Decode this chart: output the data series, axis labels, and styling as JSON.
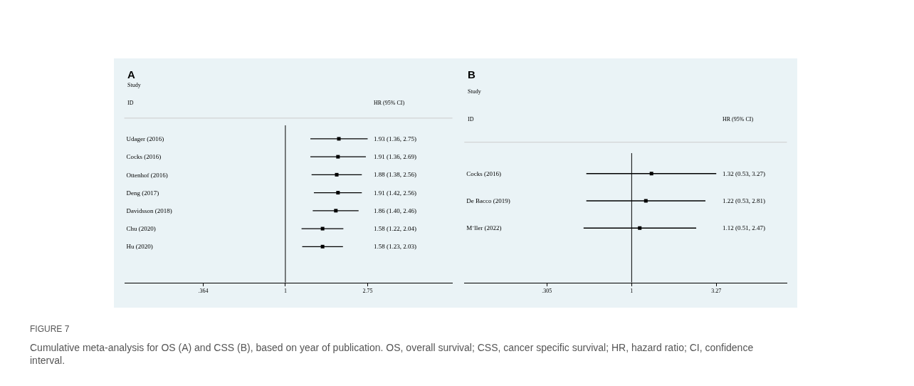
{
  "chart_data": [
    {
      "type": "scatter",
      "orientation": "horizontal",
      "title": "A",
      "color": "#000000",
      "marker": "square",
      "log": "x",
      "grid": false,
      "categories": [
        "Udager (2016)",
        "Cocks (2016)",
        "Ottenhof (2016)",
        "Deng (2017)",
        "Davidsson (2018)",
        "Chu (2020)",
        "Hu (2020)"
      ],
      "values": [
        1.93,
        1.91,
        1.88,
        1.91,
        1.86,
        1.58,
        1.58
      ],
      "errors": [
        [
          1.36,
          2.75
        ],
        [
          1.36,
          2.69
        ],
        [
          1.38,
          2.56
        ],
        [
          1.42,
          2.56
        ],
        [
          1.4,
          2.46
        ],
        [
          1.22,
          2.04
        ],
        [
          1.23,
          2.03
        ]
      ],
      "xlim": [
        0.138,
        7.8
      ],
      "xticks": [
        {
          "value": 0.364,
          "label": ".364"
        },
        1,
        2.75
      ],
      "ref_lines": [
        {
          "axis": "x",
          "value": 1
        }
      ],
      "annotations": [
        "Study",
        "ID",
        "HR (95% CI)",
        "1.93 (1.36, 2.75)",
        "1.91 (1.36, 2.69)",
        "1.88 (1.38, 2.56)",
        "1.91 (1.42, 2.56)",
        "1.86 (1.40, 2.46)",
        "1.58 (1.22, 2.04)",
        "1.58 (1.23, 2.03)",
        "FIGURE 7",
        "Cumulative meta-analysis for OS (A) and CSS (B), based on year of publication. OS, overall survival; CSS, cancer specific survival; HR, hazard ratio; CI, confidence interval."
      ]
    },
    {
      "type": "scatter",
      "orientation": "horizontal",
      "title": "B",
      "color": "#000000",
      "marker": "square",
      "log": "x",
      "grid": false,
      "categories": [
        "Cocks (2016)",
        "De Bacco (2019)",
        "M¨ller (2022)"
      ],
      "values": [
        1.32,
        1.22,
        1.12
      ],
      "errors": [
        [
          0.53,
          3.27
        ],
        [
          0.53,
          2.81
        ],
        [
          0.51,
          2.47
        ]
      ],
      "xlim": [
        0.096,
        8.8
      ],
      "xticks": [
        {
          "value": 0.305,
          "label": ".305"
        },
        1,
        3.27
      ],
      "ref_lines": [
        {
          "axis": "x",
          "value": 1
        }
      ],
      "annotations": [
        "Study",
        "ID",
        "HR (95% CI)",
        "1.32 (0.53, 3.27)",
        "1.22 (0.53, 2.81)",
        "1.12 (0.51, 2.47)"
      ]
    }
  ]
}
